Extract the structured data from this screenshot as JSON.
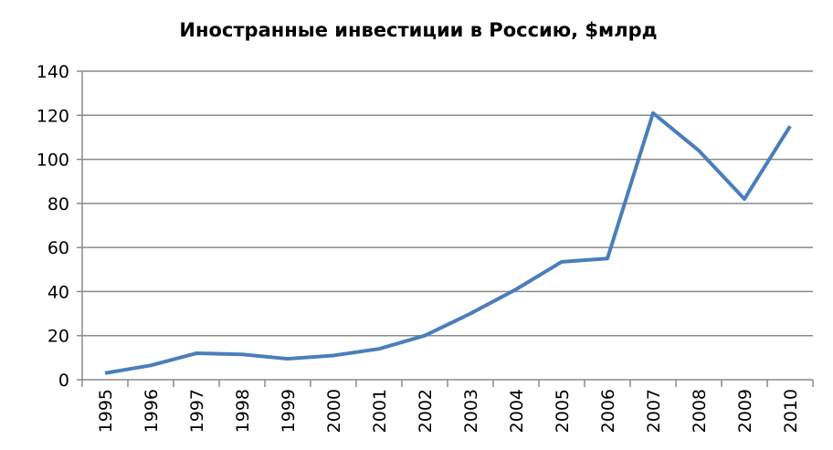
{
  "chart_data": {
    "type": "line",
    "title": "Иностранные инвестиции в Россию, $млрд",
    "categories": [
      "1995",
      "1996",
      "1997",
      "1998",
      "1999",
      "2000",
      "2001",
      "2002",
      "2003",
      "2004",
      "2005",
      "2006",
      "2007",
      "2008",
      "2009",
      "2010"
    ],
    "values": [
      3,
      6.5,
      12,
      11.5,
      9.5,
      11,
      14,
      20,
      30,
      41,
      53.5,
      55,
      121,
      104,
      82,
      115
    ],
    "color": "#4a7ebb",
    "ylim": [
      0,
      140
    ],
    "yticks": [
      0,
      20,
      40,
      60,
      80,
      100,
      120,
      140
    ],
    "grid": true
  }
}
